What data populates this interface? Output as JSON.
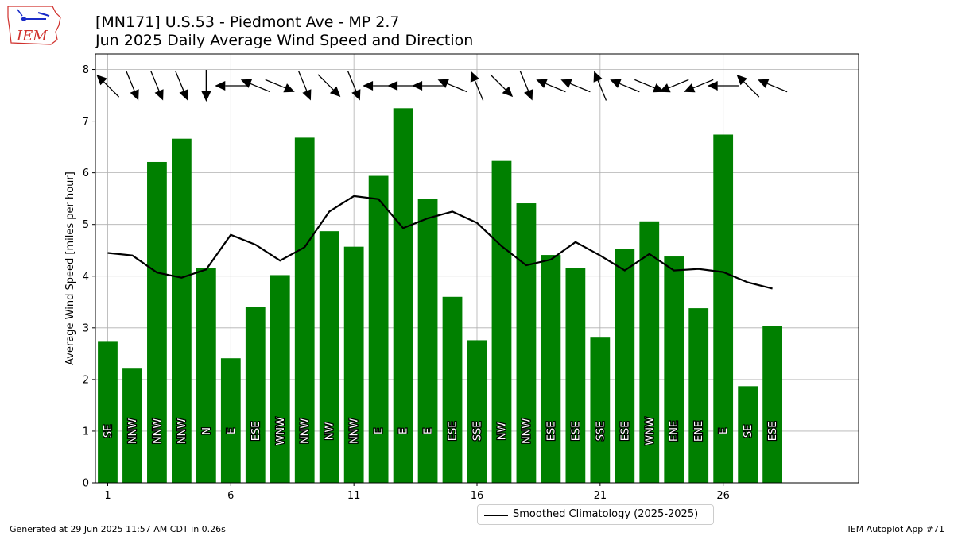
{
  "header": {
    "title_line1": "[MN171] U.S.53 - Piedmont Ave - MP 2.7",
    "title_line2": "Jun 2025 Daily Average Wind Speed and Direction"
  },
  "logo": {
    "text": "IEM"
  },
  "footer": {
    "generated": "Generated at 29 Jun 2025 11:57 AM CDT in 0.26s",
    "app": "IEM Autoplot App #71"
  },
  "legend": {
    "climatology_label": "Smoothed Climatology (2025-2025)"
  },
  "colors": {
    "bar": "#008000",
    "line": "#000000",
    "grid": "#b0b0b0"
  },
  "chart_data": {
    "type": "bar",
    "ylabel": "Average Wind Speed [miles per hour]",
    "xlim": [
      0.5,
      31.5
    ],
    "ylim": [
      0,
      8.3
    ],
    "xticks": [
      1,
      6,
      11,
      16,
      21,
      26
    ],
    "yticks": [
      0,
      1,
      2,
      3,
      4,
      5,
      6,
      7,
      8
    ],
    "grid": true,
    "legend_position": "below-center",
    "days": [
      1,
      2,
      3,
      4,
      5,
      6,
      7,
      8,
      9,
      10,
      11,
      12,
      13,
      14,
      15,
      16,
      17,
      18,
      19,
      20,
      21,
      22,
      23,
      24,
      25,
      26,
      27,
      28
    ],
    "values": [
      2.73,
      2.21,
      6.21,
      6.66,
      4.16,
      2.41,
      3.41,
      4.02,
      6.68,
      4.87,
      4.57,
      5.94,
      7.25,
      5.49,
      3.6,
      2.76,
      6.23,
      5.41,
      4.41,
      4.16,
      2.81,
      4.52,
      5.06,
      4.38,
      3.38,
      6.74,
      1.87,
      3.03
    ],
    "directions": [
      "SE",
      "NNW",
      "NNW",
      "NNW",
      "N",
      "E",
      "ESE",
      "WNW",
      "NNW",
      "NW",
      "NNW",
      "E",
      "E",
      "E",
      "ESE",
      "SSE",
      "NW",
      "NNW",
      "ESE",
      "ESE",
      "SSE",
      "ESE",
      "WNW",
      "ENE",
      "ENE",
      "E",
      "SE",
      "ESE"
    ],
    "arrow_from_deg": [
      135,
      337.5,
      337.5,
      337.5,
      0,
      90,
      112.5,
      292.5,
      337.5,
      315,
      337.5,
      90,
      90,
      90,
      112.5,
      157.5,
      315,
      337.5,
      112.5,
      112.5,
      157.5,
      112.5,
      292.5,
      67.5,
      67.5,
      90,
      135,
      112.5
    ],
    "series": [
      {
        "name": "Smoothed Climatology (2025-2025)",
        "type": "line",
        "values": [
          4.45,
          4.4,
          4.07,
          3.97,
          4.13,
          4.8,
          4.61,
          4.3,
          4.56,
          5.25,
          5.55,
          5.49,
          4.93,
          5.12,
          5.25,
          5.03,
          4.58,
          4.21,
          4.32,
          4.66,
          4.4,
          4.11,
          4.43,
          4.11,
          4.14,
          4.08,
          3.88,
          3.76
        ]
      }
    ]
  }
}
